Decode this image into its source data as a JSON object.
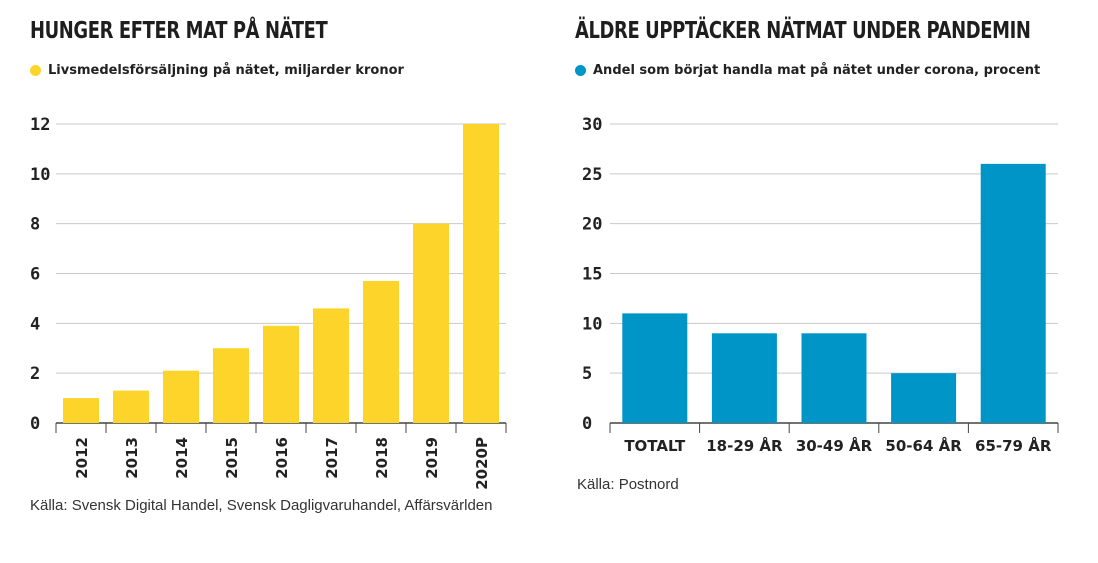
{
  "charts": [
    {
      "title": "HUNGER EFTER MAT PÅ NÄTET",
      "legend": "Livsmedelsförsäljning på nätet, miljarder kronor",
      "color": "#FDD52A",
      "source": "Källa: Svensk Digital Handel, Svensk Dagligvaruhandel, Affärsvärlden"
    },
    {
      "title": "ÄLDRE UPPTÄCKER NÄTMAT UNDER PANDEMIN",
      "legend": "Andel som börjat handla mat på nätet under corona, procent",
      "color": "#0095C7",
      "source": "Källa: Postnord"
    }
  ],
  "chart_data": [
    {
      "type": "bar",
      "title": "HUNGER EFTER MAT PÅ NÄTET",
      "categories": [
        "2012",
        "2013",
        "2014",
        "2015",
        "2016",
        "2017",
        "2018",
        "2019",
        "2020P"
      ],
      "series": [
        {
          "name": "Livsmedelsförsäljning på nätet, miljarder kronor",
          "values": [
            1.0,
            1.3,
            2.1,
            3.0,
            3.9,
            4.6,
            5.7,
            8.0,
            12.0
          ]
        }
      ],
      "yticks": [
        0,
        2,
        4,
        6,
        8,
        10,
        12
      ],
      "ylim": [
        0,
        12
      ],
      "grid": true,
      "legend_position": "top-left"
    },
    {
      "type": "bar",
      "title": "ÄLDRE UPPTÄCKER NÄTMAT UNDER PANDEMIN",
      "categories": [
        "TOTALT",
        "18-29 ÅR",
        "30-49 ÅR",
        "50-64 ÅR",
        "65-79 ÅR"
      ],
      "series": [
        {
          "name": "Andel som börjat handla mat på nätet under corona, procent",
          "values": [
            11,
            9,
            9,
            5,
            26
          ]
        }
      ],
      "yticks": [
        0,
        5,
        10,
        15,
        20,
        25,
        30
      ],
      "ylim": [
        0,
        30
      ],
      "grid": true,
      "legend_position": "top-left"
    }
  ]
}
